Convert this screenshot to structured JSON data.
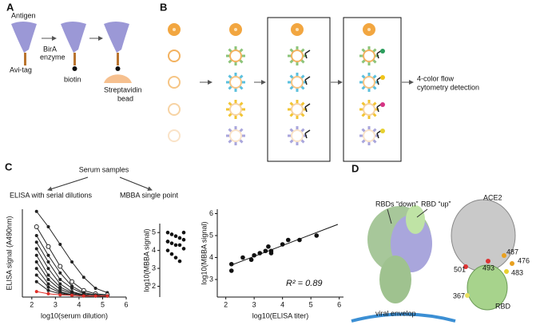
{
  "figure": {
    "A": {
      "label": "A",
      "antigen": "Antigen",
      "avi_tag": "Avi-tag",
      "bira": "BirA",
      "enzyme": "enzyme",
      "biotin": "biotin",
      "streptavidin": "Streptavidin",
      "bead": "bead"
    },
    "B": {
      "label": "B",
      "detection": [
        "4-color flow",
        "cytometry detection"
      ]
    },
    "C": {
      "label": "C",
      "root": "Serum samples",
      "left": "ELISA with serial dilutions",
      "right": "MBBA single point"
    },
    "D": {
      "label": "D",
      "rbds_down": "RBDs “down”",
      "rbd_up": "RBD “up”",
      "envelope": "viral envelop",
      "ace2": "ACE2",
      "rbd": "RBD",
      "residues": [
        "487",
        "476",
        "483",
        "493",
        "501",
        "367"
      ]
    }
  },
  "chart_data": [
    {
      "type": "line",
      "ylabel": "ELISA signal (A490nm)",
      "xlabel": "log10(serum dilution)",
      "x": [
        2.2,
        2.7,
        3.2,
        3.7,
        4.2,
        4.7,
        5.2
      ],
      "xlim": [
        1.6,
        6
      ],
      "xticks": [
        2,
        3,
        4,
        5,
        6
      ],
      "ylim": [
        0,
        4
      ],
      "series": [
        {
          "color": "#222222",
          "values": [
            3.9,
            3.2,
            2.4,
            1.6,
            0.9,
            0.4,
            0.2
          ]
        },
        {
          "color": "#222222",
          "values": [
            3.2,
            2.3,
            1.4,
            0.7,
            0.3,
            0.15,
            0.1
          ]
        },
        {
          "color": "#222222",
          "values": [
            2.8,
            1.9,
            1.1,
            0.5,
            0.2,
            0.1,
            0.05
          ]
        },
        {
          "color": "#222222",
          "values": [
            2.5,
            1.6,
            0.8,
            0.4,
            0.15,
            0.1,
            0.05
          ]
        },
        {
          "color": "#222222",
          "values": [
            2.2,
            1.3,
            0.6,
            0.25,
            0.1,
            0.05,
            0.05
          ]
        },
        {
          "color": "#222222",
          "values": [
            1.9,
            1.0,
            0.45,
            0.2,
            0.1,
            0.05,
            0.05
          ]
        },
        {
          "color": "#222222",
          "values": [
            1.6,
            0.8,
            0.35,
            0.15,
            0.08,
            0.05,
            0.05
          ]
        },
        {
          "color": "#222222",
          "values": [
            1.3,
            0.6,
            0.25,
            0.1,
            0.05,
            0.05,
            0.05
          ]
        },
        {
          "color": "#222222",
          "values": [
            1.0,
            0.45,
            0.2,
            0.1,
            0.05,
            0.05,
            0.05
          ]
        },
        {
          "color": "#222222",
          "values": [
            0.7,
            0.3,
            0.15,
            0.08,
            0.05,
            0.05,
            0.05
          ]
        },
        {
          "color": "#e0302a",
          "values": [
            0.25,
            0.15,
            0.1,
            0.08,
            0.05,
            0.05,
            0.05
          ]
        }
      ]
    },
    {
      "type": "dot",
      "ylabel": "log10(MBBA signal)",
      "ylim": [
        1.4,
        5.5
      ],
      "yticks": [
        2,
        3,
        4,
        5
      ],
      "values": [
        5.0,
        4.9,
        4.8,
        4.7,
        4.6,
        4.5,
        4.4,
        4.3,
        4.3,
        4.1,
        4.0,
        3.8,
        3.6,
        3.4,
        5.0,
        4.5
      ]
    },
    {
      "type": "scatter",
      "ylabel": "log10(MBBA signal)",
      "xlabel": "log10(ELISA titer)",
      "annotation": "R² = 0.89",
      "xlim": [
        1.7,
        6.15
      ],
      "xticks": [
        2,
        3,
        4,
        5,
        6
      ],
      "ylim": [
        2.2,
        6.2
      ],
      "yticks": [
        3,
        4,
        5,
        6
      ],
      "x": [
        2.2,
        2.2,
        2.6,
        2.9,
        3.0,
        3.2,
        3.4,
        3.5,
        3.6,
        3.6,
        4.0,
        4.2,
        4.6,
        5.2
      ],
      "values": [
        3.4,
        3.7,
        4.0,
        3.9,
        4.1,
        4.2,
        4.3,
        4.5,
        4.3,
        4.2,
        4.6,
        4.8,
        4.8,
        5.0
      ]
    }
  ]
}
